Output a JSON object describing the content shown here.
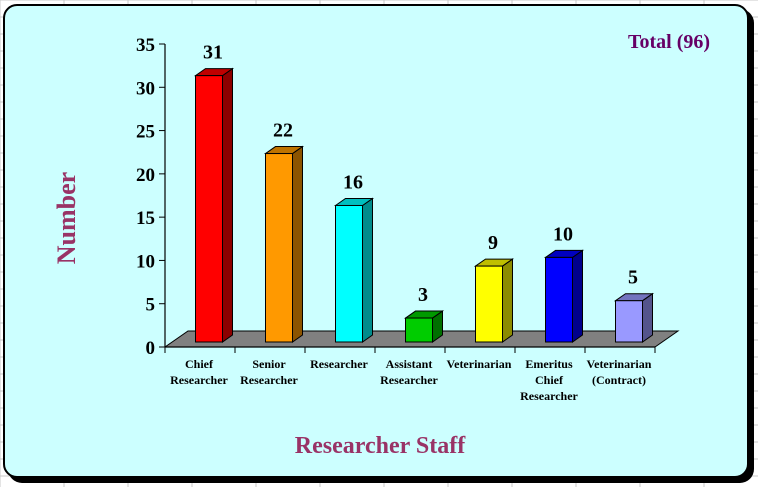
{
  "chart_data": {
    "type": "bar",
    "categories": [
      [
        "Chief",
        "Researcher"
      ],
      [
        "Senior",
        "Researcher"
      ],
      [
        "Researcher"
      ],
      [
        "Assistant",
        "Researcher"
      ],
      [
        "Veterinarian"
      ],
      [
        "Emeritus",
        "Chief",
        "Researcher"
      ],
      [
        "Veterinarian",
        "(Contract)"
      ]
    ],
    "values": [
      31,
      22,
      16,
      3,
      9,
      10,
      5
    ],
    "data_labels": [
      "31",
      "22",
      "16",
      "3",
      "9",
      "10",
      "5"
    ],
    "colors": [
      "#ff0000",
      "#ff9900",
      "#00ffff",
      "#00cc00",
      "#ffff00",
      "#0000ff",
      "#9999ff"
    ],
    "yticks": [
      "0",
      "5",
      "10",
      "15",
      "20",
      "25",
      "30",
      "35"
    ],
    "ylim": [
      0,
      35
    ],
    "ylabel": "Number",
    "xlabel": "Researcher Staff",
    "annotation": "Total (96)",
    "grid": false
  },
  "colors": {
    "panel_bg": "#ccffff",
    "axis_title": "#993366",
    "annotation": "#660066",
    "floor": "#808080"
  }
}
